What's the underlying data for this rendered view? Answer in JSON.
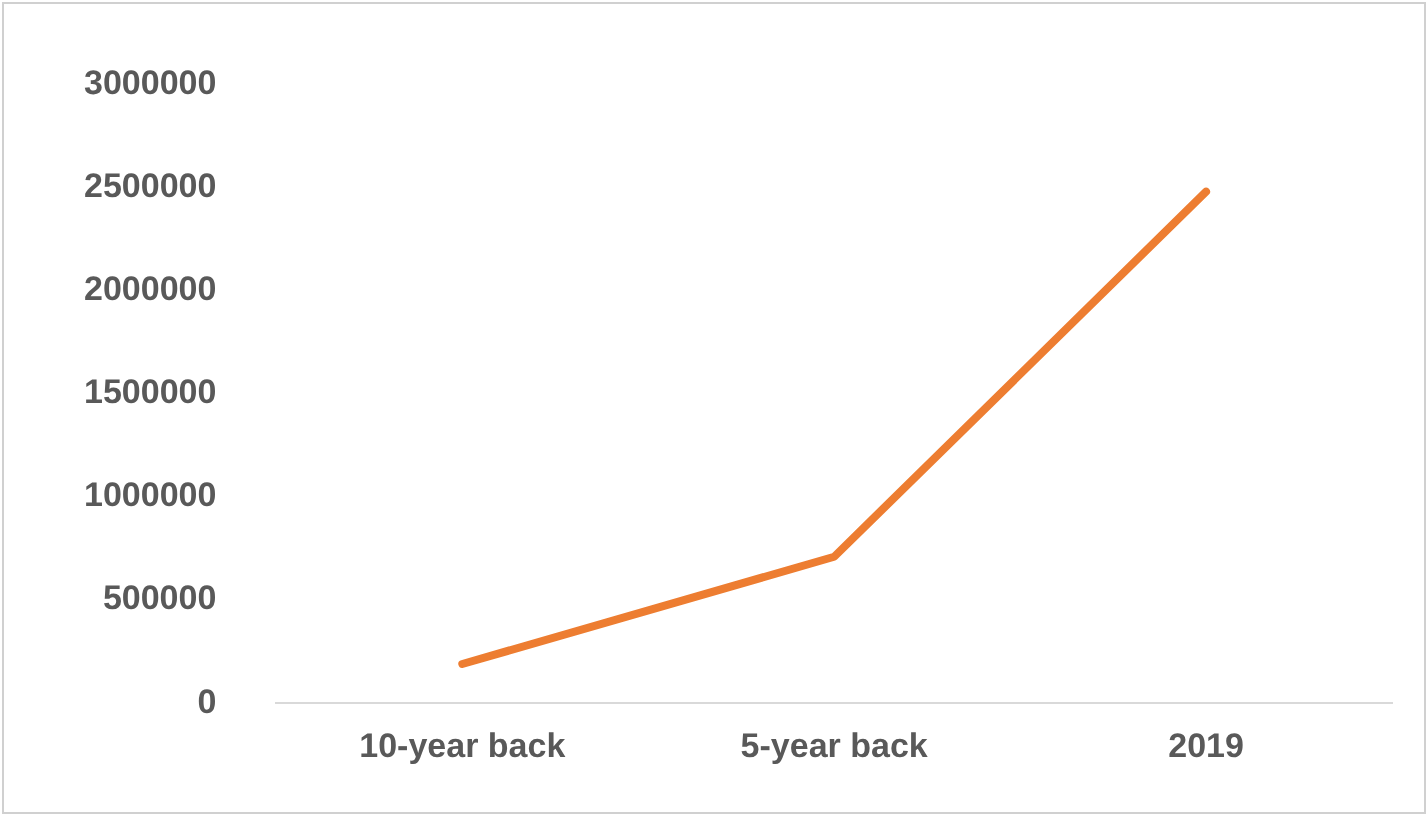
{
  "chart_data": {
    "type": "line",
    "categories": [
      "10-year back",
      "5-year back",
      "2019"
    ],
    "series": [
      {
        "color": "#ed7d31",
        "values": [
          190000,
          710000,
          2480000
        ]
      }
    ],
    "ylim": [
      0,
      3000000
    ],
    "yticks": [
      0,
      500000,
      1000000,
      1500000,
      2000000,
      2500000,
      3000000
    ],
    "grid": false,
    "legend": false,
    "marker": "none"
  }
}
